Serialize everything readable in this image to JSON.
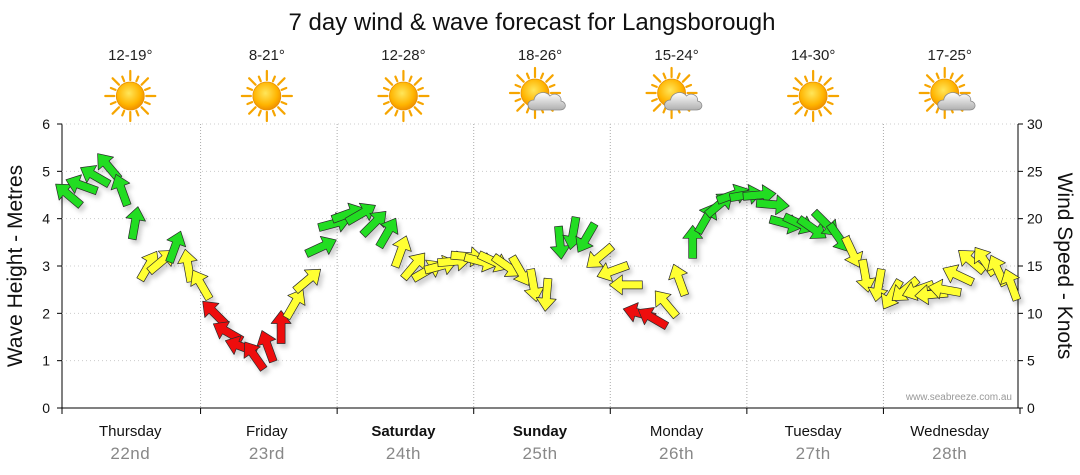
{
  "chart_data": {
    "type": "line",
    "title": "7 day wind & wave forecast for Langsborough",
    "ylabel_left": "Wave Height - Metres",
    "ylabel_right": "Wind Speed - Knots",
    "ylim_left": [
      0,
      6
    ],
    "ylim_right": [
      0,
      30
    ],
    "yticks_left": [
      "0",
      "1",
      "2",
      "3",
      "4",
      "5",
      "6"
    ],
    "yticks_right": [
      "0",
      "5",
      "10",
      "15",
      "20",
      "25",
      "30"
    ],
    "grid": "dotted-vertical",
    "credit": "www.seabreeze.com.au",
    "days": [
      {
        "name": "Thursday",
        "date": "22nd",
        "bold": false,
        "temp": "12-19°",
        "icon": "sun-icon"
      },
      {
        "name": "Friday",
        "date": "23rd",
        "bold": false,
        "temp": "8-21°",
        "icon": "sun-icon"
      },
      {
        "name": "Saturday",
        "date": "24th",
        "bold": true,
        "temp": "12-28°",
        "icon": "sun-icon"
      },
      {
        "name": "Sunday",
        "date": "25th",
        "bold": true,
        "temp": "18-26°",
        "icon": "partly-cloudy-icon"
      },
      {
        "name": "Monday",
        "date": "26th",
        "bold": false,
        "temp": "15-24°",
        "icon": "partly-cloudy-icon"
      },
      {
        "name": "Tuesday",
        "date": "27th",
        "bold": false,
        "temp": "14-30°",
        "icon": "sun-icon"
      },
      {
        "name": "Wednesday",
        "date": "28th",
        "bold": false,
        "temp": "17-25°",
        "icon": "partly-cloudy-icon"
      }
    ],
    "series": [
      {
        "name": "wind",
        "note": "wind speed in knots at 3-hourly steps; arrows colored by speed",
        "values": [
          22.5,
          23.5,
          24.5,
          25.5,
          23,
          19.5,
          15,
          15.5,
          17,
          15,
          13,
          10,
          8,
          6.5,
          5.5,
          6.5,
          8.5,
          11,
          13.5,
          17,
          19.5,
          20.5,
          20.5,
          19.5,
          18.5,
          16.5,
          15,
          14.5,
          15,
          15.5,
          16,
          15.5,
          15.5,
          15,
          14.5,
          13,
          12,
          17.5,
          18.5,
          18,
          16,
          14.5,
          13,
          10,
          9.5,
          11,
          13.5,
          17.5,
          20,
          21.5,
          22.5,
          22.5,
          22.5,
          21.5,
          19.5,
          19.5,
          19,
          19.5,
          18,
          16.5,
          14,
          13,
          12,
          12.5,
          12.5,
          12,
          12.5,
          14,
          15.5,
          15.5,
          14.5,
          13
        ]
      }
    ],
    "colors": {
      "green": "#22dd22",
      "yellow": "#ffff33",
      "red": "#ee1111",
      "grid": "#aaaaaa",
      "axis": "#000000"
    }
  }
}
